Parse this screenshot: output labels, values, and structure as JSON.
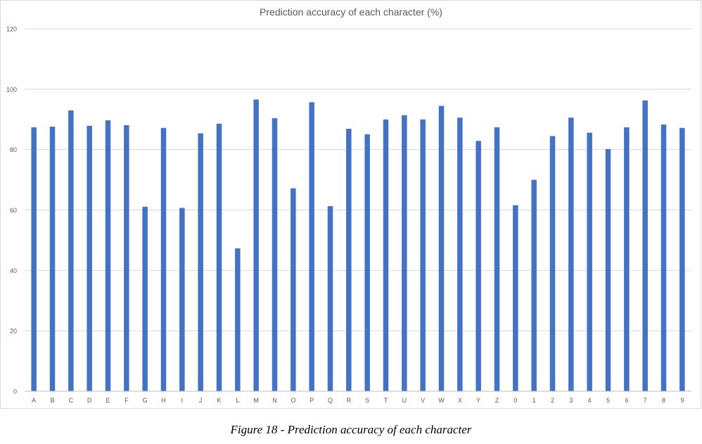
{
  "chart_data": {
    "type": "bar",
    "title": "Prediction accuracy of each character (%)",
    "xlabel": "",
    "ylabel": "",
    "ylim": [
      0,
      120
    ],
    "yticks": [
      0,
      20,
      40,
      60,
      80,
      100,
      120
    ],
    "grid": true,
    "legend": "none",
    "bar_color": "#4472C4",
    "categories": [
      "A",
      "B",
      "C",
      "D",
      "E",
      "F",
      "G",
      "H",
      "I",
      "J",
      "K",
      "L",
      "M",
      "N",
      "O",
      "P",
      "Q",
      "R",
      "S",
      "T",
      "U",
      "V",
      "W",
      "X",
      "Y",
      "Z",
      "0",
      "1",
      "2",
      "3",
      "4",
      "5",
      "6",
      "7",
      "8",
      "9"
    ],
    "values": [
      87.4,
      87.6,
      93.0,
      87.9,
      89.7,
      88.1,
      61.1,
      87.2,
      60.7,
      85.4,
      88.6,
      47.3,
      96.6,
      90.4,
      67.2,
      95.7,
      61.3,
      86.9,
      85.1,
      90.0,
      91.4,
      90.0,
      94.5,
      90.6,
      82.9,
      87.4,
      61.6,
      70.0,
      84.5,
      90.6,
      85.6,
      80.2,
      87.4,
      96.3,
      88.3,
      87.2
    ]
  },
  "caption": "Figure 18 - Prediction accuracy of each character"
}
